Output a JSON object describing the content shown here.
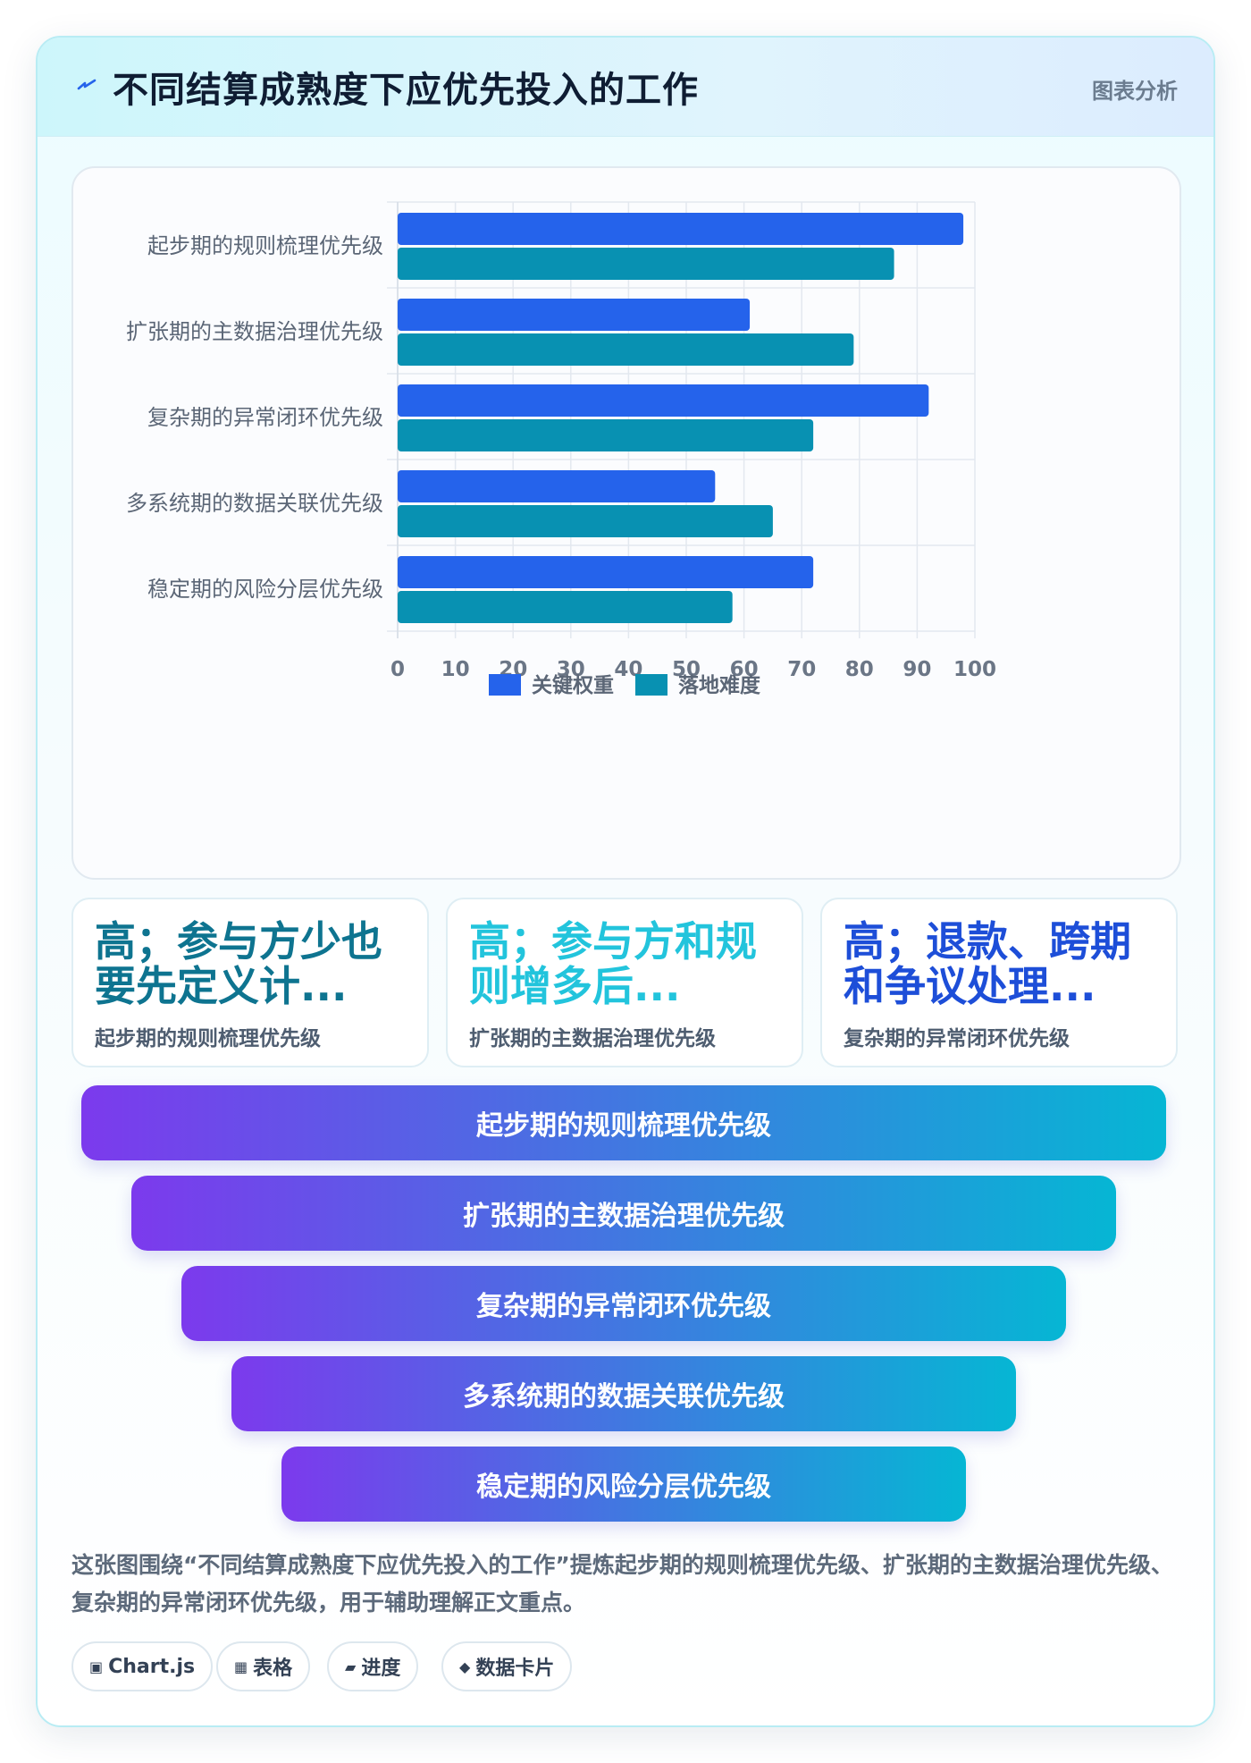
{
  "header": {
    "title": "不同结算成熟度下应优先投入的工作",
    "tag": "图表分析",
    "icon": "lightning-icon"
  },
  "chart_data": {
    "type": "bar",
    "orientation": "horizontal",
    "categories": [
      "起步期的规则梳理优先级",
      "扩张期的主数据治理优先级",
      "复杂期的异常闭环优先级",
      "多系统期的数据关联优先级",
      "稳定期的风险分层优先级"
    ],
    "series": [
      {
        "name": "关键权重",
        "values": [
          98,
          61,
          92,
          55,
          72
        ],
        "color": "#2563eb"
      },
      {
        "name": "落地难度",
        "values": [
          86,
          79,
          72,
          65,
          58
        ],
        "color": "#0891b2"
      }
    ],
    "xlim": [
      0,
      100
    ],
    "xticks": [
      0,
      10,
      20,
      30,
      40,
      50,
      60,
      70,
      80,
      90,
      100
    ],
    "grid": true,
    "legend_position": "bottom"
  },
  "stats": [
    {
      "title": "高；参与方少也要先定义计...",
      "subtitle": "起步期的规则梳理优先级",
      "color": "#0e7490"
    },
    {
      "title": "高；参与方和规则增多后...",
      "subtitle": "扩张期的主数据治理优先级",
      "color": "#22c4dc"
    },
    {
      "title": "高；退款、跨期和争议处理...",
      "subtitle": "复杂期的异常闭环优先级",
      "color": "#1d4ed8"
    }
  ],
  "funnel": [
    "起步期的规则梳理优先级",
    "扩张期的主数据治理优先级",
    "复杂期的异常闭环优先级",
    "多系统期的数据关联优先级",
    "稳定期的风险分层优先级"
  ],
  "caption": "这张图围绕“不同结算成熟度下应优先投入的工作”提炼起步期的规则梳理优先级、扩张期的主数据治理优先级、复杂期的异常闭环优先级，用于辅助理解正文重点。",
  "chips": [
    {
      "icon": "▣",
      "label": "Chart.js"
    },
    {
      "icon": "▦",
      "label": "表格"
    },
    {
      "icon": "▰",
      "label": "进度"
    },
    {
      "icon": "◆",
      "label": "数据卡片"
    }
  ]
}
